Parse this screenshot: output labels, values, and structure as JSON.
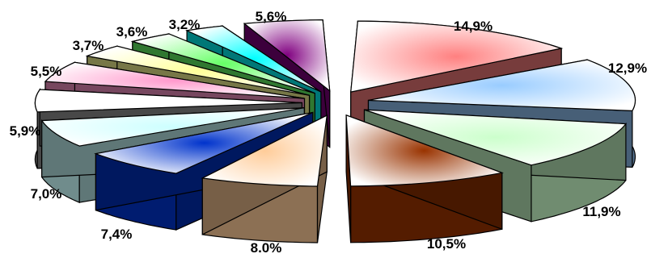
{
  "chart_data": {
    "type": "pie",
    "style": "3d-exploded",
    "title": "",
    "slices": [
      {
        "label": "14,9%",
        "value": 14.9,
        "color": "#ff8080"
      },
      {
        "label": "12,9%",
        "value": 12.9,
        "color": "#99ccff"
      },
      {
        "label": "11,9%",
        "value": 11.9,
        "color": "#ccffcc"
      },
      {
        "label": "10,5%",
        "value": 10.5,
        "color": "#993300"
      },
      {
        "label": "8.0%",
        "value": 8.0,
        "color": "#ffcc99"
      },
      {
        "label": "7,4%",
        "value": 7.4,
        "color": "#0033cc"
      },
      {
        "label": "7,0%",
        "value": 7.0,
        "color": "#ccffff"
      },
      {
        "label": "5,9%",
        "value": 5.9,
        "color": "#ffffff"
      },
      {
        "label": "5,5%",
        "value": 5.5,
        "color": "#ff99cc"
      },
      {
        "label": "3,7%",
        "value": 3.7,
        "color": "#ffff99"
      },
      {
        "label": "3,6%",
        "value": 3.6,
        "color": "#66ff66"
      },
      {
        "label": "3,2%",
        "value": 3.2,
        "color": "#00ffff"
      },
      {
        "label": "5,6%",
        "value": 5.6,
        "color": "#800080"
      }
    ]
  }
}
